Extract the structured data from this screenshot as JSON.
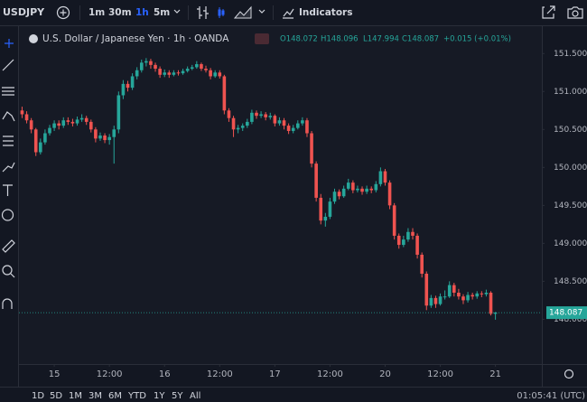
{
  "toolbar": {
    "symbol": "USDJPY",
    "intervals": [
      "1m",
      "30m",
      "1h",
      "5m"
    ],
    "indicators": "Indicators"
  },
  "legend": {
    "title": "U.S. Dollar / Japanese Yen · 1h · OANDA",
    "values": [
      "O148.072",
      "H148.096",
      "L147.994",
      "C148.087",
      "+0.015 (+0.01%)"
    ]
  },
  "chart_data": {
    "type": "candlestick",
    "up_color": "#26a69a",
    "down_color": "#ef5350",
    "grid": false,
    "xlim": [
      -7.68,
      106.1
    ],
    "ylim": [
      147.41,
      151.86
    ],
    "xticks": [
      {
        "value": 0,
        "label": "15"
      },
      {
        "value": 12,
        "label": "12:00"
      },
      {
        "value": 24,
        "label": "16"
      },
      {
        "value": 36,
        "label": "12:00"
      },
      {
        "value": 48,
        "label": "17"
      },
      {
        "value": 60,
        "label": "12:00"
      },
      {
        "value": 72,
        "label": "20"
      },
      {
        "value": 84,
        "label": "12:00"
      },
      {
        "value": 96,
        "label": "21"
      }
    ],
    "yticks": [
      {
        "value": 148,
        "label": "148.000"
      },
      {
        "value": 148.5,
        "label": "148.500"
      },
      {
        "value": 149,
        "label": "149.000"
      },
      {
        "value": 149.5,
        "label": "149.500"
      },
      {
        "value": 150,
        "label": "150.000"
      },
      {
        "value": 150.5,
        "label": "150.500"
      },
      {
        "value": 151,
        "label": "151.000"
      },
      {
        "value": 151.5,
        "label": "151.500"
      }
    ],
    "x": [
      -7,
      -6,
      -5,
      -4,
      -3,
      -2,
      -1,
      0,
      1,
      2,
      3,
      4,
      5,
      6,
      7,
      8,
      9,
      10,
      11,
      12,
      13,
      14,
      15,
      16,
      17,
      18,
      19,
      20,
      21,
      22,
      23,
      24,
      25,
      26,
      27,
      28,
      29,
      30,
      31,
      32,
      33,
      34,
      35,
      36,
      37,
      38,
      39,
      40,
      41,
      42,
      43,
      44,
      45,
      46,
      47,
      48,
      49,
      50,
      51,
      52,
      53,
      54,
      55,
      56,
      57,
      58,
      59,
      60,
      61,
      62,
      63,
      64,
      65,
      66,
      67,
      68,
      69,
      70,
      71,
      72,
      73,
      74,
      75,
      76,
      77,
      78,
      79,
      80,
      81,
      82,
      83,
      84,
      85,
      86,
      87,
      88,
      89,
      90,
      91,
      92,
      93,
      94,
      95,
      96
    ],
    "candles": [
      [
        150.75,
        150.8,
        150.65,
        150.7
      ],
      [
        150.7,
        150.74,
        150.58,
        150.62
      ],
      [
        150.62,
        150.65,
        150.45,
        150.5
      ],
      [
        150.5,
        150.52,
        150.15,
        150.2
      ],
      [
        150.2,
        150.38,
        150.17,
        150.33
      ],
      [
        150.33,
        150.5,
        150.3,
        150.45
      ],
      [
        150.45,
        150.56,
        150.42,
        150.52
      ],
      [
        150.52,
        150.62,
        150.48,
        150.58
      ],
      [
        150.58,
        150.62,
        150.5,
        150.55
      ],
      [
        150.55,
        150.66,
        150.52,
        150.62
      ],
      [
        150.62,
        150.66,
        150.56,
        150.6
      ],
      [
        150.6,
        150.64,
        150.54,
        150.58
      ],
      [
        150.58,
        150.67,
        150.55,
        150.63
      ],
      [
        150.63,
        150.7,
        150.6,
        150.65
      ],
      [
        150.65,
        150.68,
        150.56,
        150.6
      ],
      [
        150.6,
        150.63,
        150.46,
        150.5
      ],
      [
        150.5,
        150.53,
        150.33,
        150.38
      ],
      [
        150.38,
        150.46,
        150.35,
        150.42
      ],
      [
        150.42,
        150.45,
        150.32,
        150.36
      ],
      [
        150.36,
        150.44,
        150.3,
        150.4
      ],
      [
        150.4,
        150.55,
        150.05,
        150.5
      ],
      [
        150.5,
        151,
        150.45,
        150.95
      ],
      [
        150.95,
        151.15,
        150.9,
        151.1
      ],
      [
        151.1,
        151.14,
        151,
        151.05
      ],
      [
        151.05,
        151.24,
        151.02,
        151.2
      ],
      [
        151.2,
        151.32,
        151.16,
        151.28
      ],
      [
        151.28,
        151.42,
        151.25,
        151.38
      ],
      [
        151.38,
        151.44,
        151.33,
        151.4
      ],
      [
        151.4,
        151.43,
        151.3,
        151.35
      ],
      [
        151.35,
        151.38,
        151.26,
        151.3
      ],
      [
        151.3,
        151.33,
        151.18,
        151.22
      ],
      [
        151.22,
        151.29,
        151.19,
        151.25
      ],
      [
        151.25,
        151.28,
        151.18,
        151.22
      ],
      [
        151.22,
        151.28,
        151.2,
        151.25
      ],
      [
        151.25,
        151.28,
        151.21,
        151.24
      ],
      [
        151.24,
        151.3,
        151.22,
        151.27
      ],
      [
        151.27,
        151.33,
        151.25,
        151.3
      ],
      [
        151.3,
        151.35,
        151.28,
        151.32
      ],
      [
        151.32,
        151.4,
        151.3,
        151.36
      ],
      [
        151.36,
        151.38,
        151.27,
        151.3
      ],
      [
        151.3,
        151.34,
        151.25,
        151.28
      ],
      [
        151.28,
        151.31,
        151.16,
        151.2
      ],
      [
        151.2,
        151.28,
        151.18,
        151.25
      ],
      [
        151.25,
        151.28,
        151.17,
        151.2
      ],
      [
        151.2,
        151.22,
        150.7,
        150.75
      ],
      [
        150.75,
        150.78,
        150.6,
        150.65
      ],
      [
        150.65,
        150.68,
        150.4,
        150.5
      ],
      [
        150.5,
        150.56,
        150.45,
        150.52
      ],
      [
        150.52,
        150.58,
        150.48,
        150.55
      ],
      [
        150.55,
        150.64,
        150.52,
        150.6
      ],
      [
        150.6,
        150.76,
        150.57,
        150.72
      ],
      [
        150.72,
        150.75,
        150.64,
        150.68
      ],
      [
        150.68,
        150.74,
        150.65,
        150.7
      ],
      [
        150.7,
        150.73,
        150.62,
        150.66
      ],
      [
        150.66,
        150.72,
        150.63,
        150.68
      ],
      [
        150.68,
        150.7,
        150.54,
        150.58
      ],
      [
        150.58,
        150.66,
        150.55,
        150.62
      ],
      [
        150.62,
        150.65,
        150.5,
        150.55
      ],
      [
        150.55,
        150.58,
        150.44,
        150.48
      ],
      [
        150.48,
        150.56,
        150.45,
        150.52
      ],
      [
        150.52,
        150.62,
        150.5,
        150.58
      ],
      [
        150.58,
        150.66,
        150.55,
        150.62
      ],
      [
        150.62,
        150.65,
        150.4,
        150.45
      ],
      [
        150.45,
        150.48,
        150,
        150.05
      ],
      [
        150.05,
        150.08,
        149.55,
        149.6
      ],
      [
        149.6,
        149.65,
        149.25,
        149.3
      ],
      [
        149.3,
        149.4,
        149.22,
        149.35
      ],
      [
        149.35,
        149.6,
        149.32,
        149.55
      ],
      [
        149.55,
        149.72,
        149.52,
        149.68
      ],
      [
        149.68,
        149.71,
        149.58,
        149.62
      ],
      [
        149.62,
        149.76,
        149.6,
        149.72
      ],
      [
        149.72,
        149.85,
        149.7,
        149.8
      ],
      [
        149.8,
        149.83,
        149.66,
        149.7
      ],
      [
        149.7,
        149.76,
        149.67,
        149.72
      ],
      [
        149.72,
        149.75,
        149.64,
        149.68
      ],
      [
        149.68,
        149.76,
        149.65,
        149.72
      ],
      [
        149.72,
        149.75,
        149.66,
        149.7
      ],
      [
        149.7,
        149.82,
        149.67,
        149.78
      ],
      [
        149.78,
        150,
        149.75,
        149.95
      ],
      [
        149.95,
        149.98,
        149.76,
        149.8
      ],
      [
        149.8,
        149.83,
        149.45,
        149.5
      ],
      [
        149.5,
        149.53,
        149.05,
        149.1
      ],
      [
        149.1,
        149.13,
        148.93,
        148.98
      ],
      [
        148.98,
        149.1,
        148.95,
        149.05
      ],
      [
        149.05,
        149.2,
        149.02,
        149.15
      ],
      [
        149.15,
        149.2,
        149.05,
        149.1
      ],
      [
        149.1,
        149.13,
        148.8,
        148.85
      ],
      [
        148.85,
        148.88,
        148.55,
        148.6
      ],
      [
        148.6,
        148.63,
        148.12,
        148.18
      ],
      [
        148.18,
        148.32,
        148.15,
        148.28
      ],
      [
        148.28,
        148.31,
        148.15,
        148.2
      ],
      [
        148.2,
        148.34,
        148.18,
        148.3
      ],
      [
        148.3,
        148.38,
        148.26,
        148.3
      ],
      [
        148.3,
        148.5,
        148.28,
        148.45
      ],
      [
        148.45,
        148.48,
        148.3,
        148.35
      ],
      [
        148.35,
        148.4,
        148.26,
        148.3
      ],
      [
        148.3,
        148.33,
        148.2,
        148.25
      ],
      [
        148.25,
        148.36,
        148.22,
        148.32
      ],
      [
        148.32,
        148.35,
        148.26,
        148.3
      ],
      [
        148.3,
        148.37,
        148.27,
        148.34
      ],
      [
        148.34,
        148.37,
        148.29,
        148.33
      ],
      [
        148.33,
        148.39,
        148.3,
        148.35
      ],
      [
        148.35,
        148.37,
        148.05,
        148.072
      ],
      [
        148.072,
        148.096,
        147.994,
        148.087
      ]
    ]
  },
  "footer": {
    "ranges": [
      "1D",
      "5D",
      "1M",
      "3M",
      "6M",
      "YTD",
      "1Y",
      "5Y",
      "All"
    ],
    "clock": "01:05:41 (UTC)"
  }
}
